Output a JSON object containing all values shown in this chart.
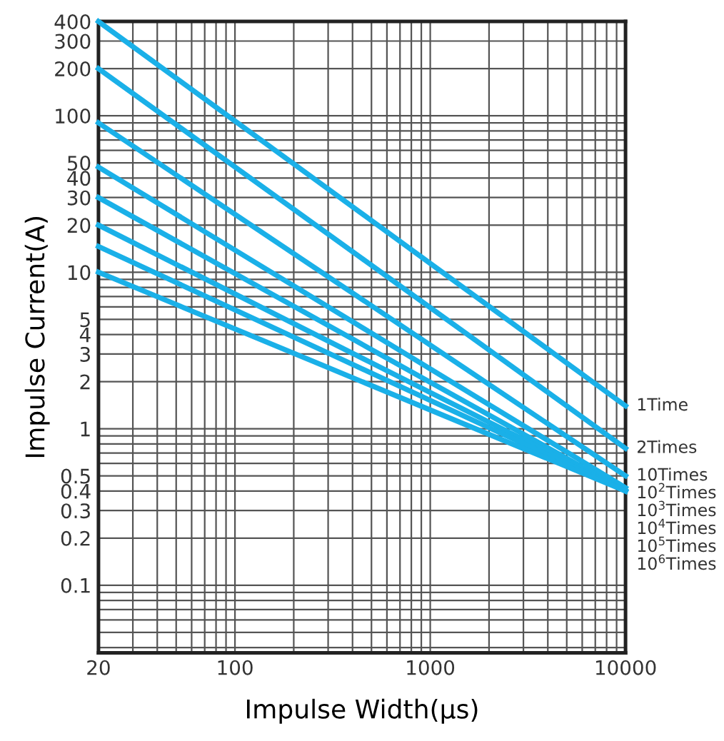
{
  "chart_data": {
    "type": "line",
    "xlabel": "Impulse Width(μs)",
    "ylabel": "Impulse Current(A)",
    "log": "xy",
    "grid": true,
    "legend": false,
    "marker": "none",
    "line_style": "solid",
    "x": [
      20,
      10000
    ],
    "xlim": [
      20,
      10000
    ],
    "xticks": [
      20,
      100,
      1000,
      10000
    ],
    "ylim": [
      0.037,
      400
    ],
    "yticks": [
      0.1,
      0.2,
      0.3,
      0.4,
      0.5,
      1,
      2,
      3,
      4,
      5,
      10,
      20,
      30,
      40,
      50,
      100,
      200,
      300,
      400
    ],
    "series": [
      {
        "name": "1Time",
        "color": "#1ab0e8",
        "values": [
          400,
          1.4
        ]
      },
      {
        "name": "2Times",
        "color": "#1ab0e8",
        "values": [
          200,
          0.75
        ]
      },
      {
        "name": "10Times",
        "color": "#1ab0e8",
        "values": [
          90,
          0.5
        ]
      },
      {
        "name": "10$^{2}$Times",
        "color": "#1ab0e8",
        "values": [
          47,
          0.42
        ]
      },
      {
        "name": "10$^{3}$Times",
        "color": "#1ab0e8",
        "values": [
          30,
          0.4
        ]
      },
      {
        "name": "10$^{4}$Times",
        "color": "#1ab0e8",
        "values": [
          20,
          0.4
        ]
      },
      {
        "name": "10$^{5}$Times",
        "color": "#1ab0e8",
        "values": [
          14.6,
          0.4
        ]
      },
      {
        "name": "10$^{6}$Times",
        "color": "#1ab0e8",
        "values": [
          10,
          0.4
        ]
      }
    ]
  }
}
